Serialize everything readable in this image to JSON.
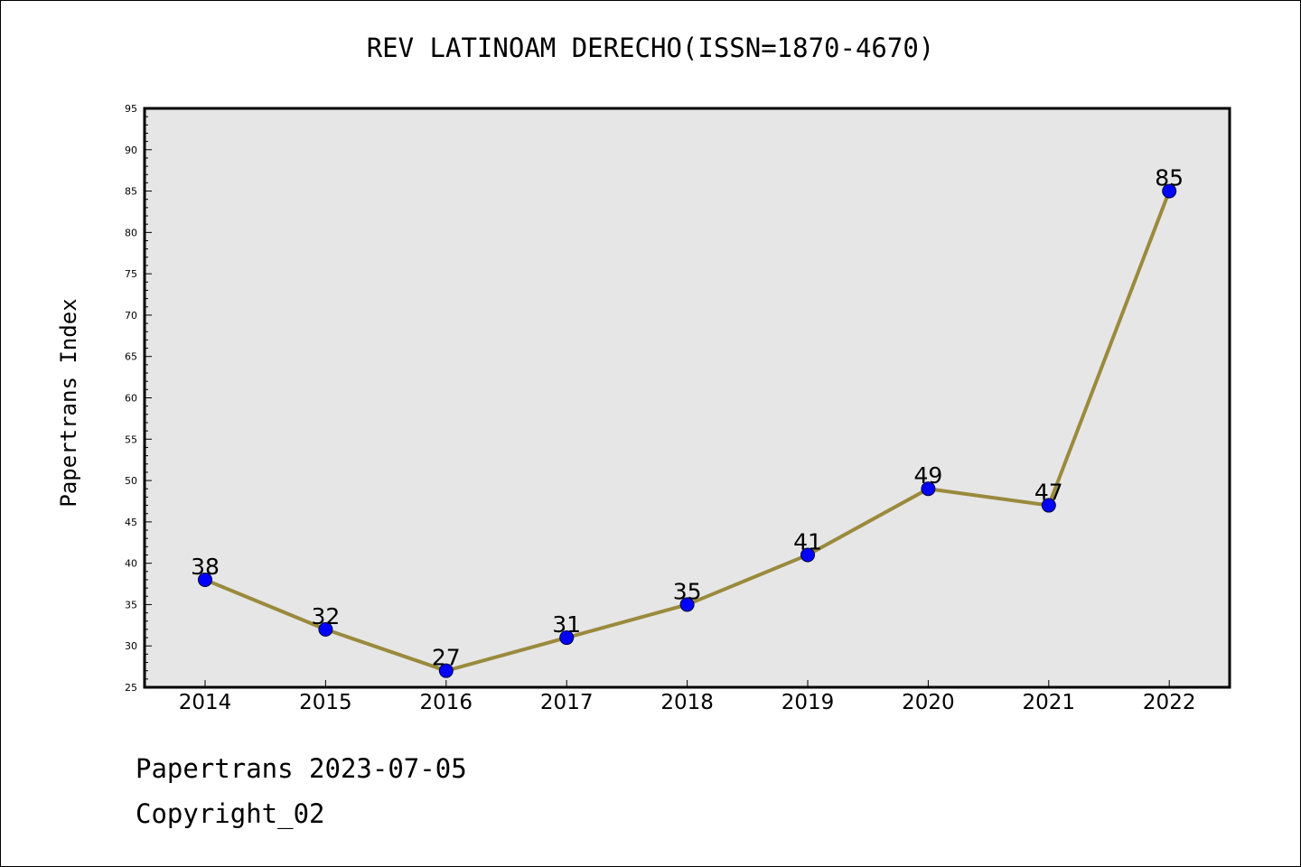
{
  "colors": {
    "plot_background": "#e6e6e6",
    "line": "#9a8a3c",
    "marker": "#0000ff",
    "frame": "#000000"
  },
  "footer": {
    "line1": "Papertrans 2023-07-05",
    "line2": "Copyright_02"
  },
  "chart_data": {
    "type": "line",
    "title": "REV LATINOAM DERECHO(ISSN=1870-4670)",
    "xlabel": "",
    "ylabel": "Papertrans Index",
    "categories": [
      "2014",
      "2015",
      "2016",
      "2017",
      "2018",
      "2019",
      "2020",
      "2021",
      "2022"
    ],
    "series": [
      {
        "values": [
          38,
          32,
          27,
          31,
          35,
          41,
          49,
          47,
          85
        ]
      }
    ],
    "data_labels": [
      "38",
      "32",
      "27",
      "31",
      "35",
      "41",
      "49",
      "47",
      "85"
    ],
    "ylim": [
      25,
      95
    ],
    "yticks": [
      25,
      30,
      35,
      40,
      45,
      50,
      55,
      60,
      65,
      70,
      75,
      80,
      85,
      90,
      95
    ],
    "grid": false,
    "legend": "none"
  }
}
